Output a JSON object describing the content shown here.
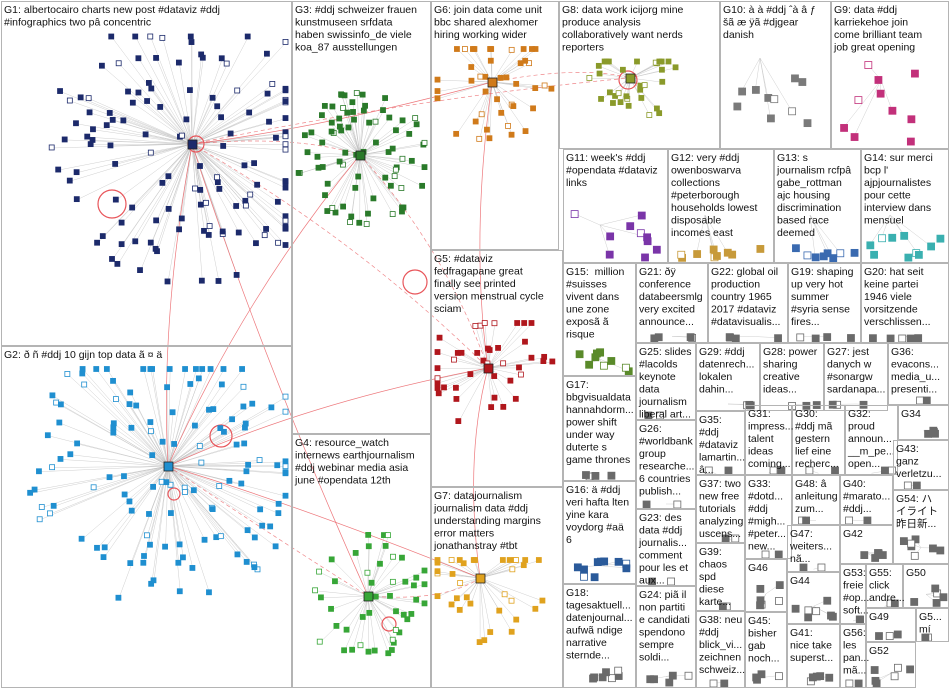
{
  "groups": [
    {
      "id": "G1",
      "lines": [
        "G1: albertocairo charts new post #dataviz #ddj",
        "#infographics two pâ concentric"
      ],
      "color": "#1c2a6b"
    },
    {
      "id": "G2",
      "lines": [
        "G2: ð ñ #ddj 10 gijn top data ã ¤ ä"
      ],
      "color": "#1f8fd0"
    },
    {
      "id": "G3",
      "lines": [
        "G3: #ddj schweizer frauen",
        "kunstmuseen srfdata",
        "haben swissinfo_de viele",
        "koa_87 ausstellungen"
      ],
      "color": "#2a7a2a"
    },
    {
      "id": "G4",
      "lines": [
        "G4: resource_watch",
        "internews earthjournalism",
        "#ddj webinar media asia",
        "june #opendata 12th"
      ],
      "color": "#37a637"
    },
    {
      "id": "G5",
      "lines": [
        "G5: #dataviz",
        "fedfragapane great",
        "finally see printed",
        "version menstrual cycle",
        "sciam"
      ],
      "color": "#b0161c"
    },
    {
      "id": "G6",
      "lines": [
        "G6: join data come unit",
        "bbc shared alexhomer",
        "hiring working wider"
      ],
      "color": "#d07a1a"
    },
    {
      "id": "G7",
      "lines": [
        "G7: datajournalism",
        "journalism data #ddj",
        "understanding margins",
        "error matters",
        "jonathanstray #tbt"
      ],
      "color": "#e0a21e"
    },
    {
      "id": "G8",
      "lines": [
        "G8: data work icijorg mine",
        "produce analysis",
        "collaboratively want nerds",
        "reporters"
      ],
      "color": "#8a9a2a"
    },
    {
      "id": "G9",
      "lines": [
        "G9: data #ddj",
        "karriekehoe join",
        "come brilliant team",
        "job great opening"
      ],
      "color": "#c2307a"
    },
    {
      "id": "G10",
      "lines": [
        "G10: à à #ddj ˆà â ƒ",
        "šã æ ÿã #djgear",
        "danish"
      ],
      "color": "#7a7a7a"
    },
    {
      "id": "G11",
      "lines": [
        "G11: week's #ddj",
        "#opendata #dataviz",
        "links"
      ],
      "color": "#7a35a8"
    },
    {
      "id": "G12",
      "lines": [
        "G12: very #ddj",
        "owenboswarva",
        "collections",
        "#peterborough",
        "households lowest",
        "disposable",
        "incomes east"
      ],
      "color": "#c79a3a"
    },
    {
      "id": "G13",
      "lines": [
        "G13: s",
        "journalism rcfpâ",
        "gabe_rottman",
        "ajc housing",
        "discrimination",
        "based race",
        "deemed"
      ],
      "color": "#3a6ab0"
    },
    {
      "id": "G14",
      "lines": [
        "G14: sur merci",
        "bcp l'",
        "ajpjournalistes",
        "pour cette",
        "interview dans",
        "mensuel"
      ],
      "color": "#3ab0b0"
    },
    {
      "id": "G15",
      "lines": [
        "G15: ­ million",
        "#suisses",
        "vivent dans",
        "une zone",
        "exposã ã",
        "risque"
      ],
      "color": "#5a8a2a"
    },
    {
      "id": "G16",
      "lines": [
        "G16: ä #ddj",
        "veri hafta lten",
        "yine kara",
        "voydorg #aä",
        "6"
      ],
      "color": "#2a5a9a"
    },
    {
      "id": "G17",
      "lines": [
        "G17:",
        "bbgvisualdata",
        "hannahdorm...",
        "power shift",
        "under way",
        "duterte s",
        "game thrones"
      ],
      "color": "#6a6a6a"
    },
    {
      "id": "G18",
      "lines": [
        "G18:",
        "tagesaktuell...",
        "datenjournal...",
        "aufwã ndige",
        "narrative",
        "sternde..."
      ],
      "color": "#6a6a6a"
    },
    {
      "id": "G19",
      "lines": [
        "G19: shaping",
        "up very hot",
        "summer",
        "#syria sense",
        "fires..."
      ],
      "color": "#6a6a6a"
    },
    {
      "id": "G20",
      "lines": [
        "G20: hat seit",
        "keine partei",
        "1946 viele",
        "vorsitzende",
        "verschlissen..."
      ],
      "color": "#6a6a6a"
    },
    {
      "id": "G21",
      "lines": [
        "G21: ðÿ",
        "conference",
        "databeersmlg",
        "very excited",
        "announce..."
      ],
      "color": "#6a6a6a"
    },
    {
      "id": "G22",
      "lines": [
        "G22: global oil",
        "production",
        "country 1965",
        "2017 #dataviz",
        "#datavisualis..."
      ],
      "color": "#6a6a6a"
    },
    {
      "id": "G23",
      "lines": [
        "G23: des",
        "data #ddj",
        "journalis...",
        "comment",
        "pour les et",
        "aux..."
      ],
      "color": "#6a6a6a"
    },
    {
      "id": "G24",
      "lines": [
        "G24: piã il",
        "non partiti",
        "e candidati",
        "spendono",
        "sempre",
        "soldi..."
      ],
      "color": "#6a6a6a"
    },
    {
      "id": "G25",
      "lines": [
        "G25: slides",
        "#lacolds",
        "keynote",
        "data",
        "journalism",
        "liberal art..."
      ],
      "color": "#6a6a6a"
    },
    {
      "id": "G26",
      "lines": [
        "G26:",
        "#worldbank",
        "group",
        "researche...",
        "6 countries",
        "publish..."
      ],
      "color": "#6a6a6a"
    },
    {
      "id": "G27",
      "lines": [
        "G27: jest",
        "danych w",
        "#sonargw",
        "sardanapa..."
      ],
      "color": "#6a6a6a"
    },
    {
      "id": "G28",
      "lines": [
        "G28: power",
        "sharing",
        "creative",
        "ideas..."
      ],
      "color": "#6a6a6a"
    },
    {
      "id": "G29",
      "lines": [
        "G29: #ddj",
        "datenrech...",
        "lokalen",
        "dahin..."
      ],
      "color": "#6a6a6a"
    },
    {
      "id": "G30",
      "lines": [
        "G30:",
        "#ddj mã",
        "gestern",
        "lief eine",
        "recherc..."
      ],
      "color": "#6a6a6a"
    },
    {
      "id": "G31",
      "lines": [
        "G31:",
        "impress...",
        "talent",
        "ideas",
        "coming..."
      ],
      "color": "#6a6a6a"
    },
    {
      "id": "G32",
      "lines": [
        "G32:",
        "proud",
        "announ...",
        "__m_pe...",
        "open..."
      ],
      "color": "#6a6a6a"
    },
    {
      "id": "G33",
      "lines": [
        "G33:",
        "#dotd...",
        "#ddj",
        "#migh...",
        "#peter...",
        "new..."
      ],
      "color": "#6a6a6a"
    },
    {
      "id": "G34",
      "lines": [
        "G34"
      ],
      "color": "#6a6a6a"
    },
    {
      "id": "G35",
      "lines": [
        "G35:",
        "#ddj",
        "#dataviz",
        "lamartin...",
        "â..."
      ],
      "color": "#6a6a6a"
    },
    {
      "id": "G36",
      "lines": [
        "G36:",
        "evacons...",
        "media_u...",
        "presenti..."
      ],
      "color": "#6a6a6a"
    },
    {
      "id": "G37",
      "lines": [
        "G37: two",
        "new free",
        "tutorials",
        "analyzing",
        "uscens..."
      ],
      "color": "#6a6a6a"
    },
    {
      "id": "G38",
      "lines": [
        "G38: neu",
        "#ddj",
        "blick_vi...",
        "zeichnen",
        "schweiz..."
      ],
      "color": "#6a6a6a"
    },
    {
      "id": "G39",
      "lines": [
        "G39:",
        "chaos",
        "spd",
        "diese",
        "karte..."
      ],
      "color": "#6a6a6a"
    },
    {
      "id": "G40",
      "lines": [
        "G40:",
        "#marato...",
        "#ddj..."
      ],
      "color": "#6a6a6a"
    },
    {
      "id": "G41",
      "lines": [
        "G41:",
        "nice take",
        "superst..."
      ],
      "color": "#6a6a6a"
    },
    {
      "id": "G42",
      "lines": [
        "G42"
      ],
      "color": "#6a6a6a"
    },
    {
      "id": "G43",
      "lines": [
        "G43:",
        "ganz",
        "verletzu..."
      ],
      "color": "#6a6a6a"
    },
    {
      "id": "G44",
      "lines": [
        "G44"
      ],
      "color": "#6a6a6a"
    },
    {
      "id": "G45",
      "lines": [
        "G45:",
        "bisher",
        "gab",
        "noch..."
      ],
      "color": "#6a6a6a"
    },
    {
      "id": "G46",
      "lines": [
        "G46"
      ],
      "color": "#6a6a6a"
    },
    {
      "id": "G47",
      "lines": [
        "G47:",
        "weiters...",
        "nã..."
      ],
      "color": "#6a6a6a"
    },
    {
      "id": "G48",
      "lines": [
        "G48: â",
        "anleitung",
        "zum..."
      ],
      "color": "#6a6a6a"
    },
    {
      "id": "G49",
      "lines": [
        "G49"
      ],
      "color": "#6a6a6a"
    },
    {
      "id": "G50",
      "lines": [
        "G50"
      ],
      "color": "#6a6a6a"
    },
    {
      "id": "G51",
      "lines": [
        "G5...",
        "mí"
      ],
      "color": "#6a6a6a"
    },
    {
      "id": "G52",
      "lines": [
        "G52"
      ],
      "color": "#6a6a6a"
    },
    {
      "id": "G53",
      "lines": [
        "G53:",
        "freie",
        "#op...",
        "soft..."
      ],
      "color": "#6a6a6a"
    },
    {
      "id": "G54",
      "lines": [
        "G54: ハ",
        "イライト",
        "昨日新..."
      ],
      "color": "#6a6a6a"
    },
    {
      "id": "G55",
      "lines": [
        "G55:",
        "click",
        "andre..."
      ],
      "color": "#6a6a6a"
    },
    {
      "id": "G56",
      "lines": [
        "G56:",
        "les",
        "pan...",
        "mã..."
      ],
      "color": "#6a6a6a"
    }
  ]
}
